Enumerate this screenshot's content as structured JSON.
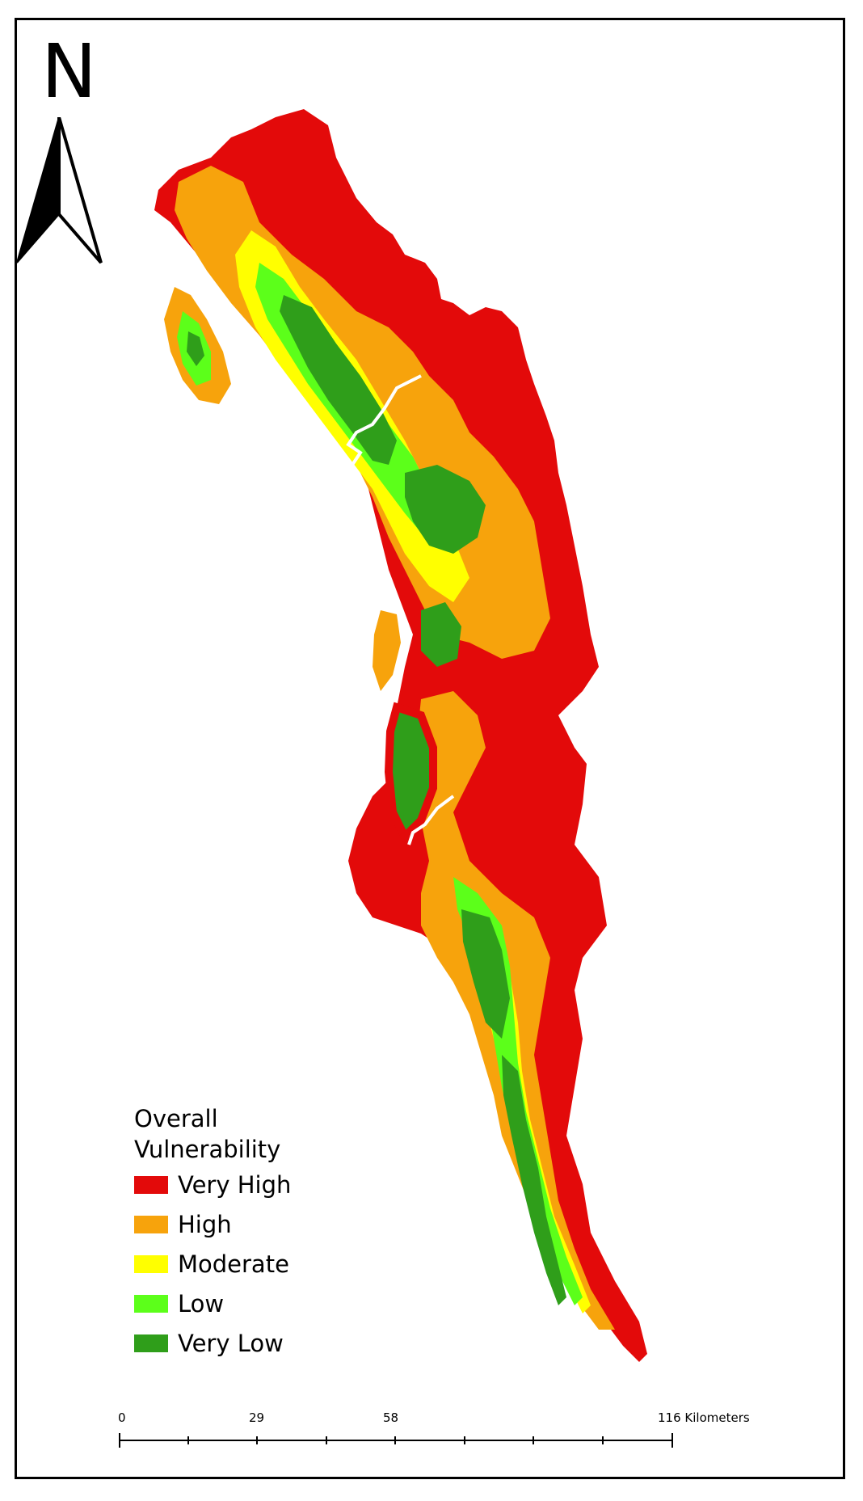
{
  "north_arrow": {
    "letter": "N",
    "icon": "north-arrow-icon"
  },
  "legend": {
    "title": "Overall Vulnerability",
    "items": [
      {
        "label": "Very High",
        "color": "#e30a0a"
      },
      {
        "label": "High",
        "color": "#f7a30c"
      },
      {
        "label": "Moderate",
        "color": "#ffff00"
      },
      {
        "label": "Low",
        "color": "#5cff1a"
      },
      {
        "label": "Very Low",
        "color": "#2f9e1a"
      }
    ]
  },
  "scale_bar": {
    "labels": [
      "0",
      "29",
      "58",
      "116 Kilometers"
    ],
    "values": [
      0,
      29,
      58,
      116
    ],
    "unit": "Kilometers"
  }
}
